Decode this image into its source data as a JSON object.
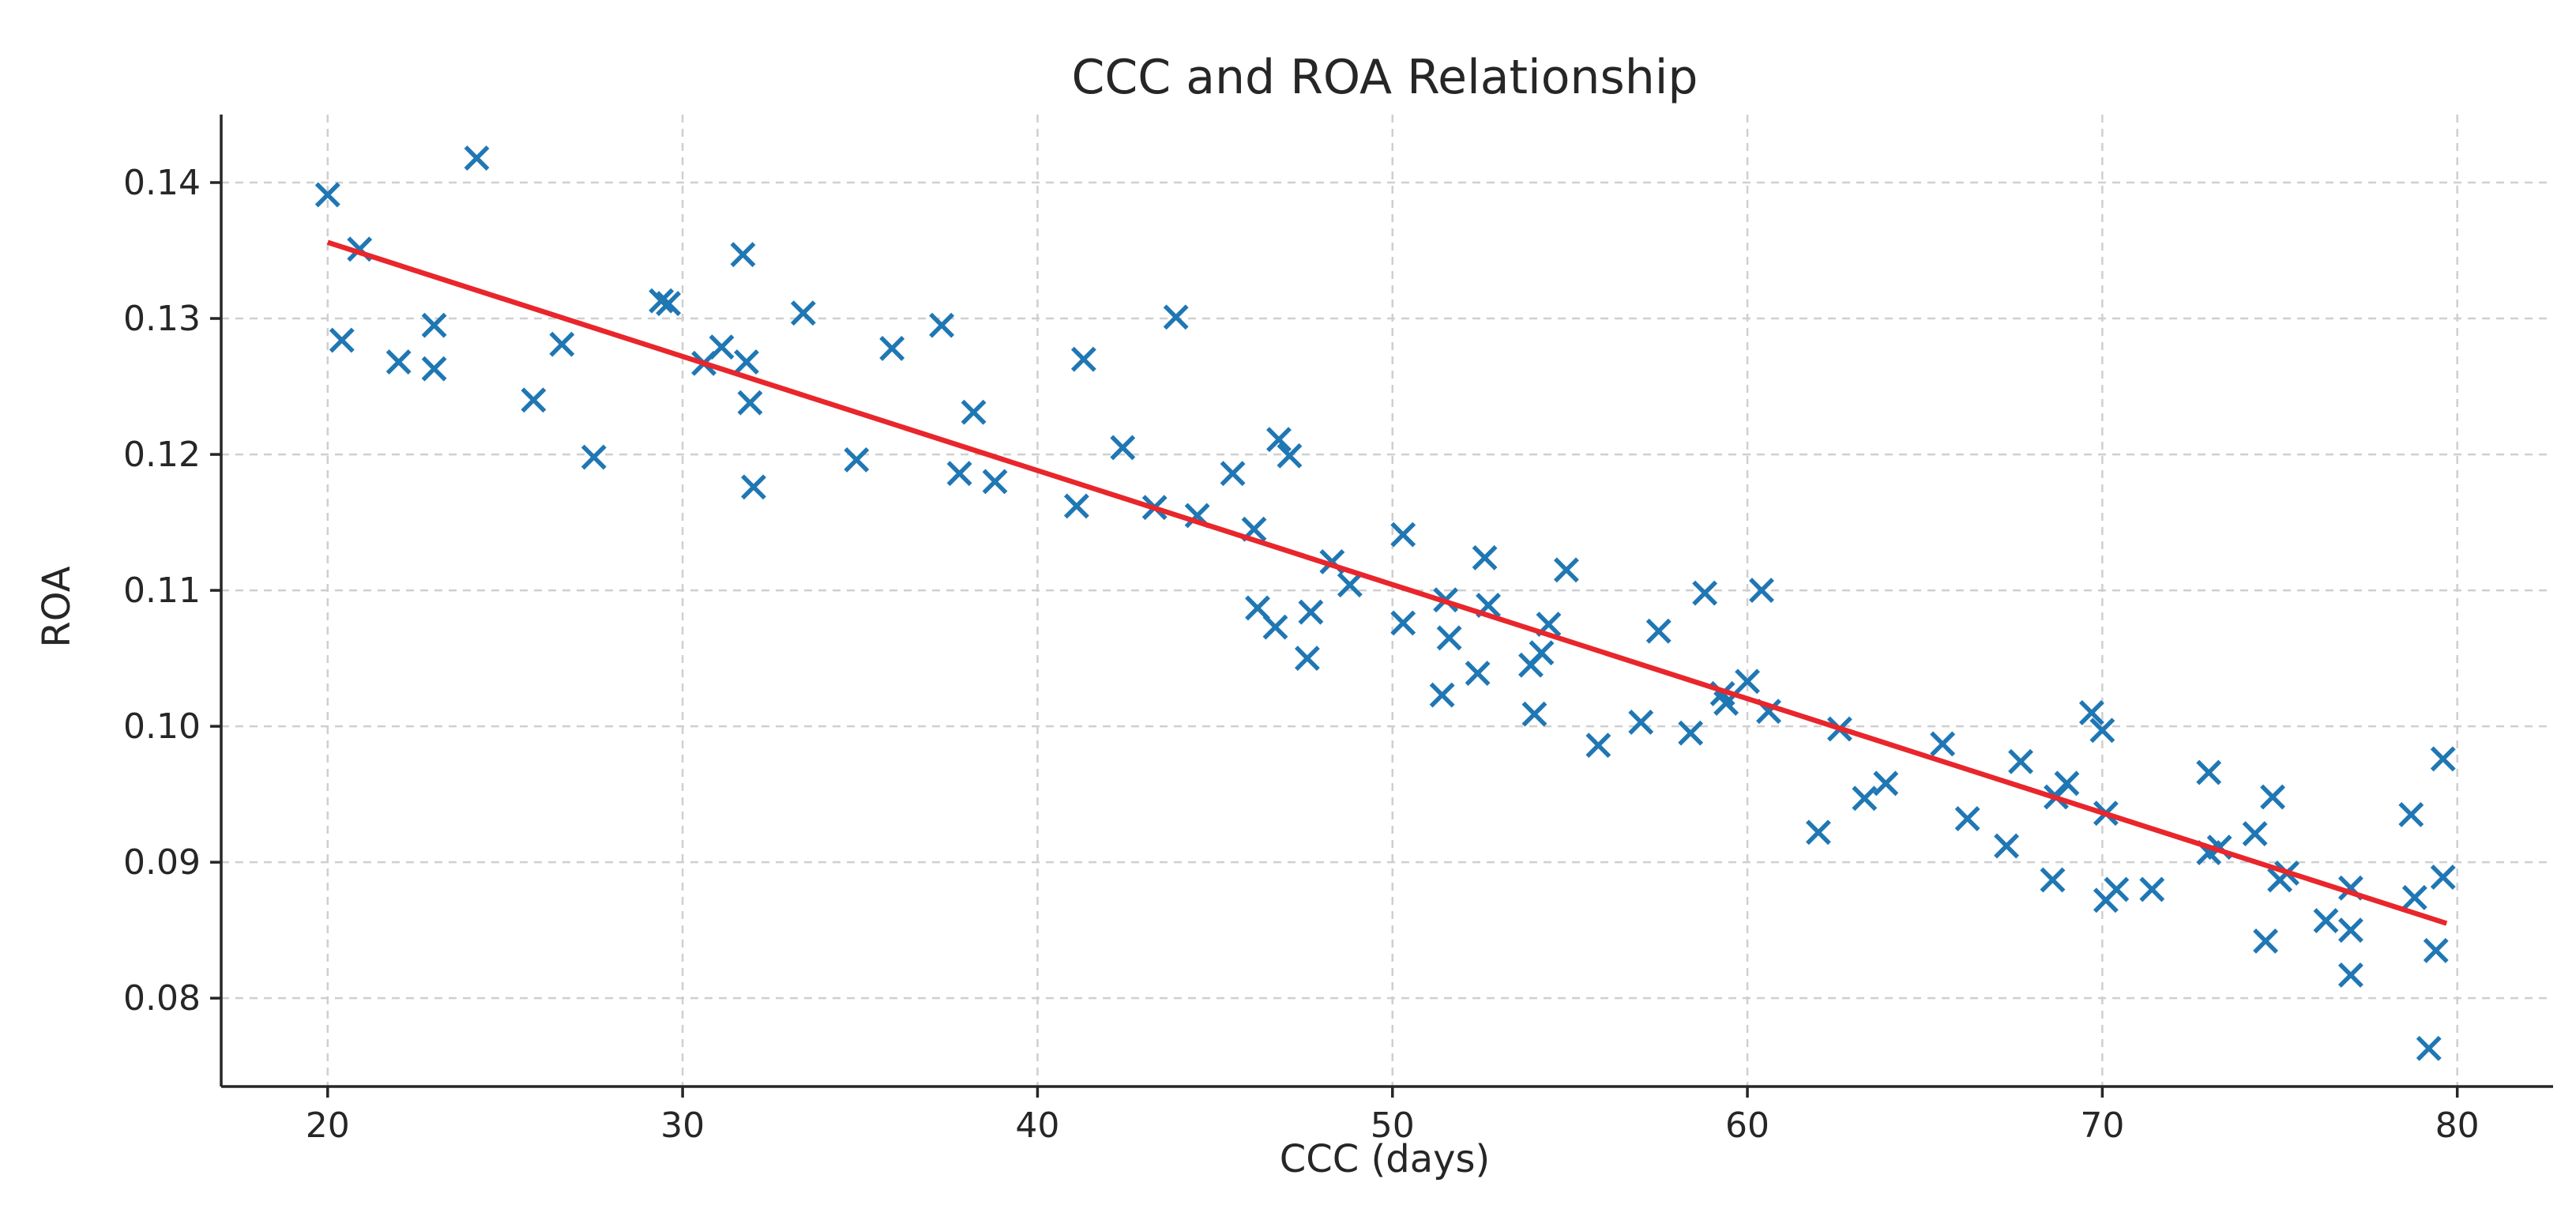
{
  "chart_data": {
    "type": "scatter",
    "title": "CCC and ROA Relationship",
    "xlabel": "CCC (days)",
    "ylabel": "ROA",
    "xlim": [
      17,
      82.7
    ],
    "ylim": [
      0.0735,
      0.145
    ],
    "xticks": [
      20,
      30,
      40,
      50,
      60,
      70,
      80
    ],
    "xtick_labels": [
      "20",
      "30",
      "40",
      "50",
      "60",
      "70",
      "80"
    ],
    "yticks": [
      0.08,
      0.09,
      0.1,
      0.11,
      0.12,
      0.13,
      0.14
    ],
    "ytick_labels": [
      "0.08",
      "0.09",
      "0.10",
      "0.11",
      "0.12",
      "0.13",
      "0.14"
    ],
    "grid": true,
    "legend": "none",
    "marker": "x",
    "colors": {
      "points": "#1f77b4",
      "fit": "#e8262b",
      "grid": "#cfcfcf",
      "axes": "#262626"
    },
    "points": [
      {
        "x": 20.0,
        "y": 0.1391
      },
      {
        "x": 20.4,
        "y": 0.1284
      },
      {
        "x": 20.9,
        "y": 0.1351
      },
      {
        "x": 22.0,
        "y": 0.1268
      },
      {
        "x": 23.0,
        "y": 0.1295
      },
      {
        "x": 23.0,
        "y": 0.1263
      },
      {
        "x": 24.2,
        "y": 0.1418
      },
      {
        "x": 25.8,
        "y": 0.124
      },
      {
        "x": 26.6,
        "y": 0.1281
      },
      {
        "x": 27.5,
        "y": 0.1198
      },
      {
        "x": 29.4,
        "y": 0.1313
      },
      {
        "x": 29.6,
        "y": 0.1311
      },
      {
        "x": 30.6,
        "y": 0.1267
      },
      {
        "x": 31.1,
        "y": 0.1279
      },
      {
        "x": 31.7,
        "y": 0.1347
      },
      {
        "x": 31.8,
        "y": 0.1268
      },
      {
        "x": 31.9,
        "y": 0.1238
      },
      {
        "x": 32.0,
        "y": 0.1176
      },
      {
        "x": 33.4,
        "y": 0.1304
      },
      {
        "x": 34.9,
        "y": 0.1196
      },
      {
        "x": 35.9,
        "y": 0.1278
      },
      {
        "x": 37.3,
        "y": 0.1295
      },
      {
        "x": 37.8,
        "y": 0.1186
      },
      {
        "x": 38.2,
        "y": 0.1231
      },
      {
        "x": 38.8,
        "y": 0.118
      },
      {
        "x": 41.1,
        "y": 0.1162
      },
      {
        "x": 41.3,
        "y": 0.127
      },
      {
        "x": 42.4,
        "y": 0.1205
      },
      {
        "x": 43.3,
        "y": 0.1161
      },
      {
        "x": 43.9,
        "y": 0.1301
      },
      {
        "x": 44.5,
        "y": 0.1155
      },
      {
        "x": 45.5,
        "y": 0.1186
      },
      {
        "x": 46.1,
        "y": 0.1145
      },
      {
        "x": 46.2,
        "y": 0.1087
      },
      {
        "x": 46.7,
        "y": 0.1073
      },
      {
        "x": 46.8,
        "y": 0.1211
      },
      {
        "x": 47.1,
        "y": 0.1199
      },
      {
        "x": 47.6,
        "y": 0.105
      },
      {
        "x": 47.7,
        "y": 0.1084
      },
      {
        "x": 48.3,
        "y": 0.1121
      },
      {
        "x": 48.8,
        "y": 0.1104
      },
      {
        "x": 50.3,
        "y": 0.1141
      },
      {
        "x": 50.3,
        "y": 0.1076
      },
      {
        "x": 51.4,
        "y": 0.1023
      },
      {
        "x": 51.5,
        "y": 0.1093
      },
      {
        "x": 51.6,
        "y": 0.1065
      },
      {
        "x": 52.4,
        "y": 0.1039
      },
      {
        "x": 52.6,
        "y": 0.1124
      },
      {
        "x": 52.7,
        "y": 0.1089
      },
      {
        "x": 53.9,
        "y": 0.1045
      },
      {
        "x": 54.0,
        "y": 0.1009
      },
      {
        "x": 54.2,
        "y": 0.1054
      },
      {
        "x": 54.4,
        "y": 0.1075
      },
      {
        "x": 54.9,
        "y": 0.1115
      },
      {
        "x": 55.8,
        "y": 0.0986
      },
      {
        "x": 57.0,
        "y": 0.1003
      },
      {
        "x": 57.5,
        "y": 0.107
      },
      {
        "x": 58.4,
        "y": 0.0995
      },
      {
        "x": 58.8,
        "y": 0.1098
      },
      {
        "x": 59.3,
        "y": 0.1024
      },
      {
        "x": 59.4,
        "y": 0.1017
      },
      {
        "x": 60.0,
        "y": 0.1033
      },
      {
        "x": 60.4,
        "y": 0.11
      },
      {
        "x": 60.6,
        "y": 0.1011
      },
      {
        "x": 62.0,
        "y": 0.0922
      },
      {
        "x": 62.6,
        "y": 0.0998
      },
      {
        "x": 63.3,
        "y": 0.0947
      },
      {
        "x": 63.9,
        "y": 0.0958
      },
      {
        "x": 65.5,
        "y": 0.0987
      },
      {
        "x": 66.2,
        "y": 0.0932
      },
      {
        "x": 67.3,
        "y": 0.0912
      },
      {
        "x": 67.7,
        "y": 0.0974
      },
      {
        "x": 68.6,
        "y": 0.0887
      },
      {
        "x": 68.7,
        "y": 0.0948
      },
      {
        "x": 69.0,
        "y": 0.0958
      },
      {
        "x": 69.7,
        "y": 0.101
      },
      {
        "x": 70.0,
        "y": 0.0997
      },
      {
        "x": 70.1,
        "y": 0.0936
      },
      {
        "x": 70.1,
        "y": 0.0872
      },
      {
        "x": 70.4,
        "y": 0.088
      },
      {
        "x": 71.4,
        "y": 0.088
      },
      {
        "x": 73.0,
        "y": 0.0966
      },
      {
        "x": 73.0,
        "y": 0.0907
      },
      {
        "x": 73.3,
        "y": 0.0911
      },
      {
        "x": 74.3,
        "y": 0.0921
      },
      {
        "x": 74.6,
        "y": 0.0842
      },
      {
        "x": 74.8,
        "y": 0.0948
      },
      {
        "x": 75.0,
        "y": 0.0887
      },
      {
        "x": 75.2,
        "y": 0.0892
      },
      {
        "x": 76.3,
        "y": 0.0857
      },
      {
        "x": 77.0,
        "y": 0.0881
      },
      {
        "x": 77.0,
        "y": 0.085
      },
      {
        "x": 77.0,
        "y": 0.0817
      },
      {
        "x": 78.7,
        "y": 0.0935
      },
      {
        "x": 78.8,
        "y": 0.0874
      },
      {
        "x": 79.2,
        "y": 0.0763
      },
      {
        "x": 79.4,
        "y": 0.0835
      },
      {
        "x": 79.6,
        "y": 0.0889
      },
      {
        "x": 79.6,
        "y": 0.0976
      }
    ],
    "trend_line": {
      "x": [
        20,
        79.7
      ],
      "y": [
        0.1356,
        0.0855
      ]
    }
  }
}
